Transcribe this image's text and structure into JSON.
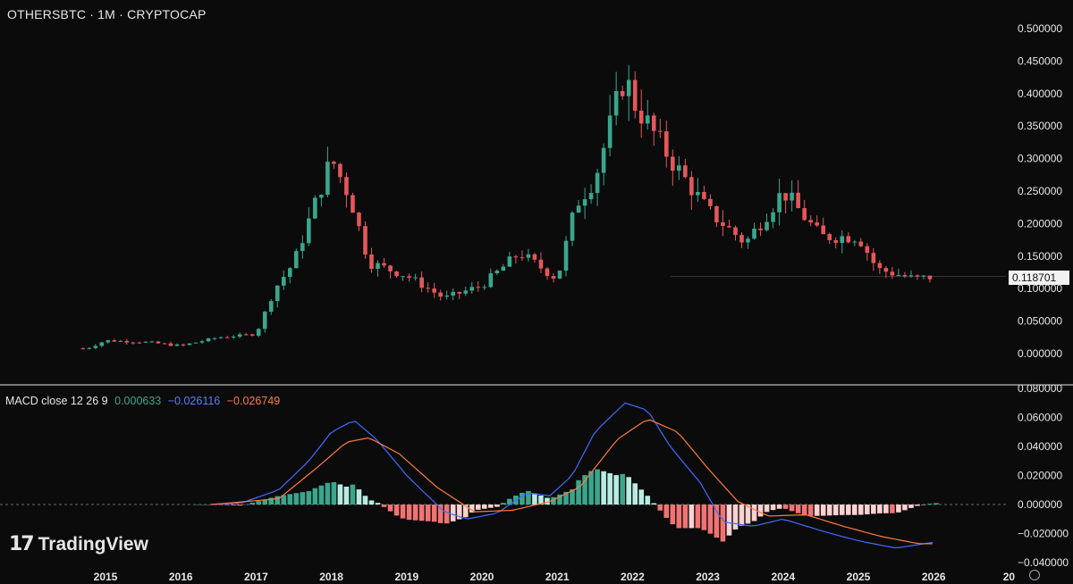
{
  "header": {
    "title": "OTHERSBTC · 1M · CRYPTOCAP"
  },
  "macd_legend": {
    "label": "MACD close 12 26 9",
    "histogram_value": "0.000633",
    "macd_value": "−0.026116",
    "signal_value": "−0.026749"
  },
  "last_price_label": "0.118701",
  "branding": {
    "logo_mark": "17",
    "logo_text": "TradingView"
  },
  "colors": {
    "background": "#0b0b0c",
    "up": "#3aa68c",
    "down": "#e5575a",
    "macd_line": "#3f6bff",
    "signal_line": "#ff7a3c",
    "hist_up_strong": "#3aa68c",
    "hist_up_weak": "#b9ebe2",
    "hist_down_strong": "#f07373",
    "hist_down_weak": "#fbd1d1",
    "axis_text": "#e6e6e6"
  },
  "chart_data": [
    {
      "type": "candlestick",
      "title": "OTHERSBTC · 1M · CRYPTOCAP",
      "y_ticks": [
        "0.500000",
        "0.450000",
        "0.400000",
        "0.350000",
        "0.300000",
        "0.250000",
        "0.200000",
        "0.150000",
        "0.100000",
        "0.050000",
        "0.000000"
      ],
      "ylim": [
        -0.03,
        0.51
      ],
      "x_ticks": [
        "2015",
        "2016",
        "2017",
        "2018",
        "2019",
        "2020",
        "2021",
        "2022",
        "2023",
        "2024",
        "2025",
        "2026",
        "20"
      ],
      "last_price": 0.118701,
      "close_by_year": {
        "2014.75": 0.008,
        "2015.0": 0.02,
        "2015.5": 0.018,
        "2016.0": 0.012,
        "2016.5": 0.025,
        "2017.0": 0.03,
        "2017.25": 0.1,
        "2017.5": 0.14,
        "2018.0": 0.3,
        "2018.25": 0.24,
        "2018.5": 0.14,
        "2019.0": 0.12,
        "2019.5": 0.085,
        "2020.0": 0.105,
        "2020.5": 0.155,
        "2021.0": 0.115,
        "2021.25": 0.23,
        "2021.5": 0.27,
        "2021.9": 0.43,
        "2022.0": 0.39,
        "2022.5": 0.3,
        "2023.0": 0.22,
        "2023.5": 0.17,
        "2024.0": 0.25,
        "2024.5": 0.18,
        "2025.0": 0.18,
        "2025.25": 0.13,
        "2025.75": 0.115,
        "2026.0": 0.118
      }
    },
    {
      "type": "macd",
      "label": "MACD close 12 26 9",
      "y_ticks": [
        "0.080000",
        "0.060000",
        "0.040000",
        "0.020000",
        "0.000000",
        "−0.020000",
        "−0.040000"
      ],
      "ylim": [
        -0.04,
        0.08
      ],
      "macd_by_year": {
        "2016.4": 0.0,
        "2016.8": 0.001,
        "2017.3": 0.01,
        "2017.7": 0.03,
        "2018.0": 0.05,
        "2018.3": 0.058,
        "2018.6": 0.045,
        "2019.0": 0.02,
        "2019.5": -0.005,
        "2019.8": -0.01,
        "2020.2": -0.006,
        "2020.6": 0.008,
        "2020.9": 0.006,
        "2021.2": 0.02,
        "2021.5": 0.05,
        "2021.9": 0.07,
        "2022.2": 0.065,
        "2022.5": 0.04,
        "2022.9": 0.015,
        "2023.2": -0.012,
        "2023.6": -0.015,
        "2024.0": -0.01,
        "2024.5": -0.018,
        "2025.0": -0.025,
        "2025.5": -0.03,
        "2026.0": -0.026
      },
      "signal_by_year": {
        "2016.4": 0.0,
        "2017.3": 0.004,
        "2017.8": 0.025,
        "2018.2": 0.043,
        "2018.5": 0.046,
        "2018.9": 0.035,
        "2019.4": 0.012,
        "2019.9": -0.005,
        "2020.4": -0.004,
        "2020.9": 0.002,
        "2021.3": 0.012,
        "2021.8": 0.045,
        "2022.2": 0.059,
        "2022.6": 0.05,
        "2023.0": 0.025,
        "2023.4": 0.002,
        "2023.8": -0.008,
        "2024.3": -0.007,
        "2024.8": -0.015,
        "2025.3": -0.022,
        "2025.8": -0.027,
        "2026.0": -0.027
      }
    }
  ]
}
